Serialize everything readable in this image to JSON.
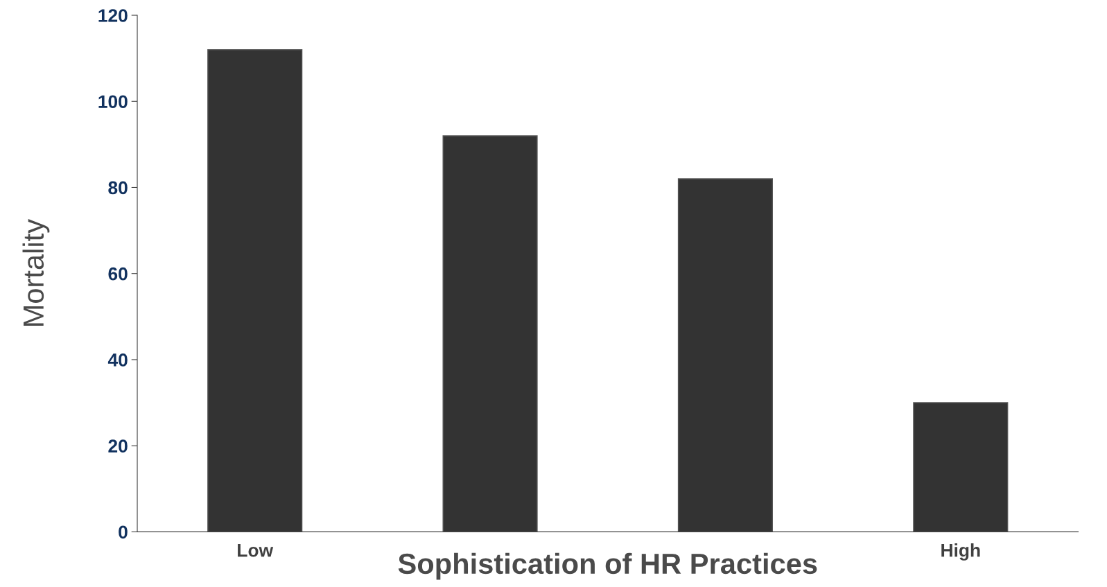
{
  "chart_data": {
    "type": "bar",
    "categories": [
      "Low",
      null,
      null,
      "High"
    ],
    "values": [
      112,
      92,
      82,
      30
    ],
    "color": "#333333",
    "xlabel": "Sophistication of HR Practices",
    "ylabel": "Mortality",
    "ylim": [
      0,
      120
    ],
    "yticks": [
      0,
      20,
      40,
      60,
      80,
      100,
      120
    ],
    "grid": false,
    "legend": false
  }
}
